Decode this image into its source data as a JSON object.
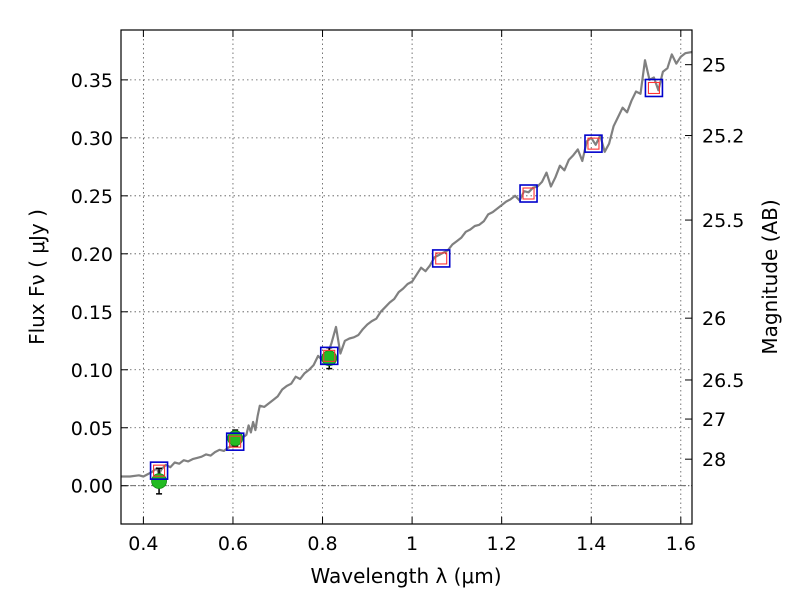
{
  "chart_data": {
    "type": "line",
    "title": "",
    "xlabel": "Wavelength  λ (μm)",
    "ylabel": "Flux  Fν  ( μJy )",
    "ylabel_right": "Magnitude (AB)",
    "xlim": [
      0.35,
      1.625
    ],
    "ylim": [
      -0.033,
      0.393
    ],
    "grid": true,
    "x_ticks": [
      0.4,
      0.6,
      0.8,
      1.0,
      1.2,
      1.4,
      1.6
    ],
    "x_tick_labels": [
      "0.4",
      "0.6",
      "0.8",
      "1",
      "1.2",
      "1.4",
      "1.6"
    ],
    "y_ticks": [
      0.0,
      0.05,
      0.1,
      0.15,
      0.2,
      0.25,
      0.3,
      0.35
    ],
    "y_tick_labels": [
      "0.00",
      "0.05",
      "0.10",
      "0.15",
      "0.20",
      "0.25",
      "0.30",
      "0.35"
    ],
    "right_ticks": [
      {
        "flux": 0.3631,
        "label": "25"
      },
      {
        "flux": 0.302,
        "label": "25.2"
      },
      {
        "flux": 0.2291,
        "label": "25.5"
      },
      {
        "flux": 0.1445,
        "label": "26"
      },
      {
        "flux": 0.0912,
        "label": "26.5"
      },
      {
        "flux": 0.0575,
        "label": "27"
      },
      {
        "flux": 0.0229,
        "label": "28"
      }
    ],
    "zero_line": 0.0,
    "colors": {
      "spectrum": "#808080",
      "model_box": "#0000cc",
      "model_inner": "#ff3333",
      "observed": "#22bb22",
      "errorbar": "#000000",
      "grid": "#555555",
      "zero_line": "#555555"
    },
    "series": [
      {
        "kind": "spectrum",
        "x": [
          0.35,
          0.37,
          0.39,
          0.4,
          0.41,
          0.42,
          0.43,
          0.435,
          0.44,
          0.45,
          0.46,
          0.47,
          0.48,
          0.49,
          0.5,
          0.51,
          0.52,
          0.53,
          0.54,
          0.55,
          0.56,
          0.57,
          0.58,
          0.59,
          0.6,
          0.61,
          0.62,
          0.63,
          0.635,
          0.64,
          0.645,
          0.65,
          0.655,
          0.66,
          0.67,
          0.68,
          0.69,
          0.7,
          0.71,
          0.72,
          0.73,
          0.74,
          0.75,
          0.76,
          0.77,
          0.78,
          0.79,
          0.8,
          0.81,
          0.82,
          0.83,
          0.84,
          0.85,
          0.86,
          0.87,
          0.88,
          0.89,
          0.9,
          0.91,
          0.92,
          0.93,
          0.94,
          0.95,
          0.96,
          0.97,
          0.98,
          0.99,
          1.0,
          1.01,
          1.02,
          1.03,
          1.04,
          1.05,
          1.06,
          1.07,
          1.08,
          1.09,
          1.1,
          1.11,
          1.12,
          1.13,
          1.14,
          1.15,
          1.16,
          1.17,
          1.18,
          1.19,
          1.2,
          1.21,
          1.22,
          1.23,
          1.24,
          1.25,
          1.26,
          1.27,
          1.28,
          1.29,
          1.3,
          1.31,
          1.32,
          1.33,
          1.34,
          1.35,
          1.36,
          1.37,
          1.38,
          1.39,
          1.4,
          1.41,
          1.42,
          1.43,
          1.44,
          1.45,
          1.46,
          1.47,
          1.48,
          1.49,
          1.5,
          1.51,
          1.52,
          1.53,
          1.54,
          1.55,
          1.56,
          1.57,
          1.58,
          1.59,
          1.6,
          1.61,
          1.625
        ],
        "y": [
          0.008,
          0.008,
          0.009,
          0.008,
          0.01,
          0.012,
          0.015,
          0.01,
          0.014,
          0.018,
          0.016,
          0.02,
          0.019,
          0.022,
          0.021,
          0.023,
          0.024,
          0.025,
          0.027,
          0.026,
          0.029,
          0.031,
          0.03,
          0.033,
          0.035,
          0.038,
          0.041,
          0.044,
          0.052,
          0.046,
          0.055,
          0.048,
          0.06,
          0.069,
          0.068,
          0.071,
          0.074,
          0.077,
          0.083,
          0.086,
          0.088,
          0.094,
          0.092,
          0.097,
          0.1,
          0.104,
          0.112,
          0.108,
          0.112,
          0.123,
          0.137,
          0.114,
          0.125,
          0.127,
          0.128,
          0.13,
          0.135,
          0.139,
          0.142,
          0.144,
          0.15,
          0.154,
          0.158,
          0.161,
          0.167,
          0.17,
          0.174,
          0.176,
          0.182,
          0.188,
          0.185,
          0.19,
          0.197,
          0.199,
          0.201,
          0.203,
          0.208,
          0.211,
          0.214,
          0.219,
          0.221,
          0.224,
          0.225,
          0.228,
          0.234,
          0.236,
          0.239,
          0.242,
          0.245,
          0.247,
          0.25,
          0.246,
          0.254,
          0.253,
          0.257,
          0.258,
          0.262,
          0.27,
          0.258,
          0.266,
          0.276,
          0.272,
          0.281,
          0.285,
          0.29,
          0.28,
          0.297,
          0.3,
          0.294,
          0.302,
          0.288,
          0.295,
          0.31,
          0.318,
          0.326,
          0.322,
          0.332,
          0.34,
          0.338,
          0.367,
          0.35,
          0.352,
          0.341,
          0.357,
          0.36,
          0.372,
          0.364,
          0.37,
          0.373,
          0.374
        ]
      },
      {
        "kind": "model_photometry",
        "x": [
          0.435,
          0.605,
          0.815,
          1.065,
          1.26,
          1.405,
          1.54
        ],
        "y": [
          0.013,
          0.038,
          0.112,
          0.196,
          0.252,
          0.295,
          0.343
        ]
      },
      {
        "kind": "observed_photometry",
        "x": [
          0.435,
          0.605,
          0.815
        ],
        "y": [
          0.004,
          0.041,
          0.11
        ],
        "yerr": [
          0.011,
          0.007,
          0.009
        ]
      }
    ]
  }
}
